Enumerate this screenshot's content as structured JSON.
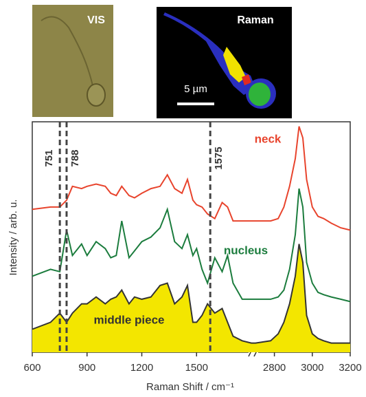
{
  "images": {
    "vis_label": "VIS",
    "raman_label": "Raman",
    "scale_label": "5 µm"
  },
  "chart_data": {
    "type": "line",
    "x_label": "Raman Shift / cm⁻¹",
    "y_label": "Intensity / arb. u.",
    "xlim": [
      600,
      3200
    ],
    "x_break": [
      1800,
      2700
    ],
    "ylim": [
      0,
      100
    ],
    "xticks": [
      600,
      900,
      1200,
      1500,
      2800,
      3000,
      3200
    ],
    "vlines": [
      751,
      788,
      1575
    ],
    "x": [
      600,
      700,
      751,
      788,
      820,
      870,
      900,
      950,
      1000,
      1030,
      1060,
      1090,
      1130,
      1160,
      1200,
      1250,
      1300,
      1340,
      1380,
      1420,
      1450,
      1480,
      1500,
      1530,
      1560,
      1600,
      1640,
      1670,
      1700,
      1750,
      1800,
      2700,
      2780,
      2820,
      2850,
      2880,
      2910,
      2930,
      2950,
      2970,
      3000,
      3030,
      3060,
      3100,
      3150,
      3200
    ],
    "series": [
      {
        "name": "neck",
        "color": "#e8432c",
        "values": [
          62,
          63,
          63,
          66,
          72,
          71,
          72,
          73,
          72,
          69,
          68,
          72,
          68,
          67,
          69,
          71,
          72,
          77,
          71,
          69,
          75,
          66,
          64,
          63,
          60,
          58,
          65,
          63,
          57,
          57,
          57,
          57,
          57,
          58,
          63,
          72,
          84,
          98,
          93,
          75,
          63,
          59,
          58,
          56,
          54,
          53
        ]
      },
      {
        "name": "nucleus",
        "color": "#1b7c3d",
        "values": [
          33,
          36,
          35,
          53,
          42,
          47,
          42,
          48,
          45,
          41,
          42,
          57,
          41,
          44,
          48,
          50,
          54,
          62,
          48,
          45,
          51,
          42,
          45,
          36,
          30,
          41,
          35,
          42,
          30,
          23,
          23,
          23,
          23,
          24,
          27,
          36,
          51,
          71,
          63,
          39,
          30,
          26,
          25,
          24,
          23,
          22
        ]
      },
      {
        "name": "middle piece",
        "color": "#333333",
        "fill": "#f3e600",
        "values": [
          10,
          13,
          17,
          13,
          17,
          21,
          21,
          24,
          21,
          23,
          24,
          27,
          21,
          24,
          23,
          24,
          29,
          30,
          21,
          24,
          29,
          13,
          13,
          16,
          21,
          17,
          19,
          13,
          7,
          5,
          4,
          4,
          5,
          8,
          13,
          21,
          33,
          47,
          39,
          16,
          8,
          6,
          5,
          4,
          4,
          4
        ]
      }
    ]
  }
}
